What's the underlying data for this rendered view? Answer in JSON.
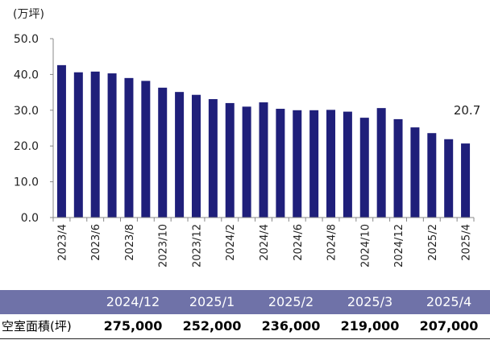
{
  "chart_data": {
    "type": "bar",
    "unit_label": "(万坪)",
    "categories": [
      "2023/4",
      "2023/5",
      "2023/6",
      "2023/7",
      "2023/8",
      "2023/9",
      "2023/10",
      "2023/11",
      "2023/12",
      "2024/1",
      "2024/2",
      "2024/3",
      "2024/4",
      "2024/5",
      "2024/6",
      "2024/7",
      "2024/8",
      "2024/9",
      "2024/10",
      "2024/11",
      "2024/12",
      "2025/1",
      "2025/2",
      "2025/3",
      "2025/4"
    ],
    "tick_labels": [
      "2023/4",
      "2023/6",
      "2023/8",
      "2023/10",
      "2023/12",
      "2024/2",
      "2024/4",
      "2024/6",
      "2024/8",
      "2024/10",
      "2024/12",
      "2025/2",
      "2025/4"
    ],
    "values": [
      42.6,
      40.6,
      40.8,
      40.3,
      39.0,
      38.2,
      36.3,
      35.1,
      34.3,
      33.1,
      32.0,
      31.0,
      32.2,
      30.4,
      30.0,
      30.0,
      30.1,
      29.6,
      27.9,
      30.6,
      27.5,
      25.2,
      23.6,
      21.9,
      20.7
    ],
    "ylim": [
      0,
      50
    ],
    "yticks": [
      "0.0",
      "10.0",
      "20.0",
      "30.0",
      "40.0",
      "50.0"
    ],
    "data_label": "20.7",
    "bar_color": "#1f1f7a",
    "grid": false
  },
  "summary_table": {
    "row_label": "空室面積(坪)",
    "months": [
      "2024/12",
      "2025/1",
      "2025/2",
      "2025/3",
      "2025/4"
    ],
    "values": [
      "275,000",
      "252,000",
      "236,000",
      "219,000",
      "207,000"
    ],
    "header_color": "#6f72a8"
  }
}
